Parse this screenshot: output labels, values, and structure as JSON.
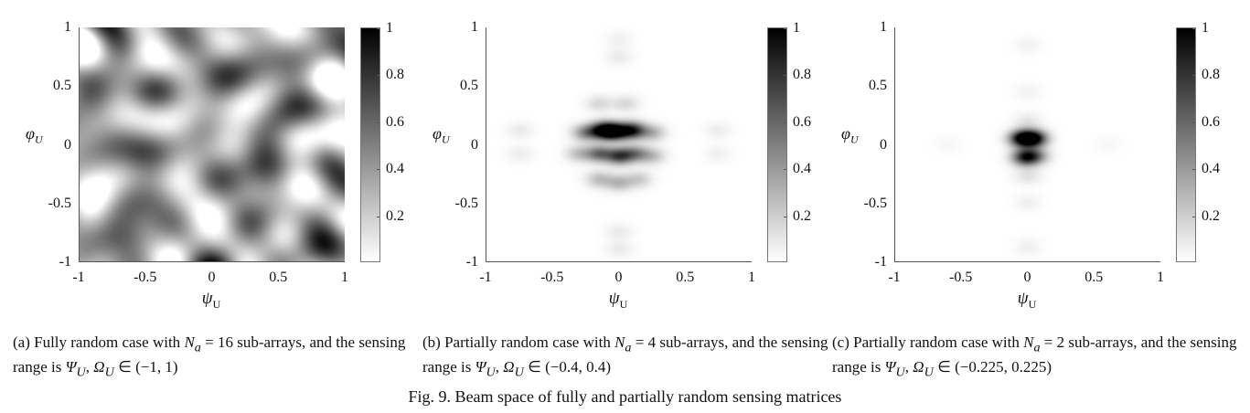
{
  "chart_data": [
    {
      "type": "heatmap",
      "id": "a",
      "xlabel": "ψ",
      "xlabel_sub": "U",
      "ylabel": "φ",
      "ylabel_sub": "U",
      "xlim": [
        -1,
        1
      ],
      "ylim": [
        -1,
        1
      ],
      "xticks": [
        "-1",
        "-0.5",
        "0",
        "0.5",
        "1"
      ],
      "yticks": [
        "1",
        "0.5",
        "0",
        "-0.5",
        "-1"
      ],
      "colorbar": {
        "range": [
          0,
          1
        ],
        "ticks": [
          "1",
          "0.8",
          "0.6",
          "0.4",
          "0.2"
        ],
        "colormap": "gray-reversed"
      },
      "pattern": "random-speckle",
      "seed": 7,
      "features": []
    },
    {
      "type": "heatmap",
      "id": "b",
      "xlabel": "ψ",
      "xlabel_sub": "U",
      "ylabel": "φ",
      "ylabel_sub": "U",
      "xlim": [
        -1,
        1
      ],
      "ylim": [
        -1,
        1
      ],
      "xticks": [
        "-1",
        "-0.5",
        "0",
        "0.5",
        "1"
      ],
      "yticks": [
        "1",
        "0.5",
        "0",
        "-0.5",
        "-1"
      ],
      "colorbar": {
        "range": [
          0,
          1
        ],
        "ticks": [
          "1",
          "0.8",
          "0.6",
          "0.4",
          "0.2"
        ],
        "colormap": "gray-reversed"
      },
      "pattern": "blobs",
      "features": [
        {
          "psi": -0.12,
          "phi": 0.12,
          "amp": 0.95
        },
        {
          "psi": -0.03,
          "phi": 0.11,
          "amp": 1.0
        },
        {
          "psi": 0.1,
          "phi": 0.12,
          "amp": 0.85
        },
        {
          "psi": -0.25,
          "phi": 0.1,
          "amp": 0.45
        },
        {
          "psi": 0.25,
          "phi": 0.1,
          "amp": 0.3
        },
        {
          "psi": -0.15,
          "phi": -0.08,
          "amp": 0.55
        },
        {
          "psi": 0.0,
          "phi": -0.1,
          "amp": 0.7
        },
        {
          "psi": 0.12,
          "phi": -0.08,
          "amp": 0.45
        },
        {
          "psi": -0.3,
          "phi": -0.08,
          "amp": 0.25
        },
        {
          "psi": 0.25,
          "phi": -0.1,
          "amp": 0.25
        },
        {
          "psi": -0.15,
          "phi": -0.3,
          "amp": 0.25
        },
        {
          "psi": 0.0,
          "phi": -0.33,
          "amp": 0.28
        },
        {
          "psi": 0.15,
          "phi": -0.3,
          "amp": 0.2
        },
        {
          "psi": -0.15,
          "phi": 0.35,
          "amp": 0.15
        },
        {
          "psi": 0.05,
          "phi": 0.35,
          "amp": 0.15
        },
        {
          "psi": 0.0,
          "phi": 0.75,
          "amp": 0.08
        },
        {
          "psi": 0.0,
          "phi": 0.9,
          "amp": 0.06
        },
        {
          "psi": 0.0,
          "phi": -0.75,
          "amp": 0.08
        },
        {
          "psi": 0.0,
          "phi": -0.9,
          "amp": 0.08
        },
        {
          "psi": -0.75,
          "phi": 0.12,
          "amp": 0.08
        },
        {
          "psi": -0.75,
          "phi": -0.08,
          "amp": 0.07
        },
        {
          "psi": 0.75,
          "phi": 0.12,
          "amp": 0.07
        },
        {
          "psi": 0.75,
          "phi": -0.08,
          "amp": 0.06
        }
      ]
    },
    {
      "type": "heatmap",
      "id": "c",
      "xlabel": "ψ",
      "xlabel_sub": "U",
      "ylabel": "φ",
      "ylabel_sub": "U",
      "xlim": [
        -1,
        1
      ],
      "ylim": [
        -1,
        1
      ],
      "xticks": [
        "-1",
        "-0.5",
        "0",
        "0.5",
        "1"
      ],
      "yticks": [
        "1",
        "0.5",
        "0",
        "-0.5",
        "-1"
      ],
      "colorbar": {
        "range": [
          0,
          1
        ],
        "ticks": [
          "1",
          "0.8",
          "0.6",
          "0.4",
          "0.2"
        ],
        "colormap": "gray-reversed"
      },
      "pattern": "blobs",
      "features": [
        {
          "psi": -0.04,
          "phi": 0.05,
          "amp": 1.0
        },
        {
          "psi": 0.05,
          "phi": 0.05,
          "amp": 0.9
        },
        {
          "psi": -0.02,
          "phi": -0.11,
          "amp": 0.8
        },
        {
          "psi": 0.06,
          "phi": -0.1,
          "amp": 0.4
        },
        {
          "psi": 0.0,
          "phi": 0.2,
          "amp": 0.1
        },
        {
          "psi": 0.0,
          "phi": -0.27,
          "amp": 0.12
        },
        {
          "psi": 0.0,
          "phi": 0.45,
          "amp": 0.05
        },
        {
          "psi": 0.0,
          "phi": -0.5,
          "amp": 0.06
        },
        {
          "psi": 0.0,
          "phi": 0.85,
          "amp": 0.05
        },
        {
          "psi": 0.0,
          "phi": -0.88,
          "amp": 0.06
        },
        {
          "psi": -0.6,
          "phi": 0.0,
          "amp": 0.03
        },
        {
          "psi": 0.6,
          "phi": 0.0,
          "amp": 0.03
        }
      ]
    }
  ],
  "captions": [
    [
      {
        "t": "(a) Fully random case with "
      },
      {
        "t": "N",
        "m": true
      },
      {
        "t": "a",
        "m": true,
        "sub": true
      },
      {
        "t": " = 16 sub-arrays, and the sensing range is "
      },
      {
        "t": "Ψ",
        "m": true
      },
      {
        "t": "U",
        "m": true,
        "sub": true
      },
      {
        "t": ", "
      },
      {
        "t": "Ω",
        "m": true
      },
      {
        "t": "U",
        "m": true,
        "sub": true
      },
      {
        "t": " ∈ (−1, 1)"
      }
    ],
    [
      {
        "t": "(b) Partially random case with "
      },
      {
        "t": "N",
        "m": true
      },
      {
        "t": "a",
        "m": true,
        "sub": true
      },
      {
        "t": " = 4 sub-arrays, and the sensing range is "
      },
      {
        "t": "Ψ",
        "m": true
      },
      {
        "t": "U",
        "m": true,
        "sub": true
      },
      {
        "t": ", "
      },
      {
        "t": "Ω",
        "m": true
      },
      {
        "t": "U",
        "m": true,
        "sub": true
      },
      {
        "t": " ∈ (−0.4, 0.4)"
      }
    ],
    [
      {
        "t": "(c) Partially random case with "
      },
      {
        "t": "N",
        "m": true
      },
      {
        "t": "a",
        "m": true,
        "sub": true
      },
      {
        "t": " = 2 sub-arrays, and the sensing range is "
      },
      {
        "t": "Ψ",
        "m": true
      },
      {
        "t": "U",
        "m": true,
        "sub": true
      },
      {
        "t": ", "
      },
      {
        "t": "Ω",
        "m": true
      },
      {
        "t": "U",
        "m": true,
        "sub": true
      },
      {
        "t": " ∈ (−0.225, 0.225)"
      }
    ]
  ],
  "figure_caption": "Fig. 9. Beam space of fully and partially random sensing matrices"
}
